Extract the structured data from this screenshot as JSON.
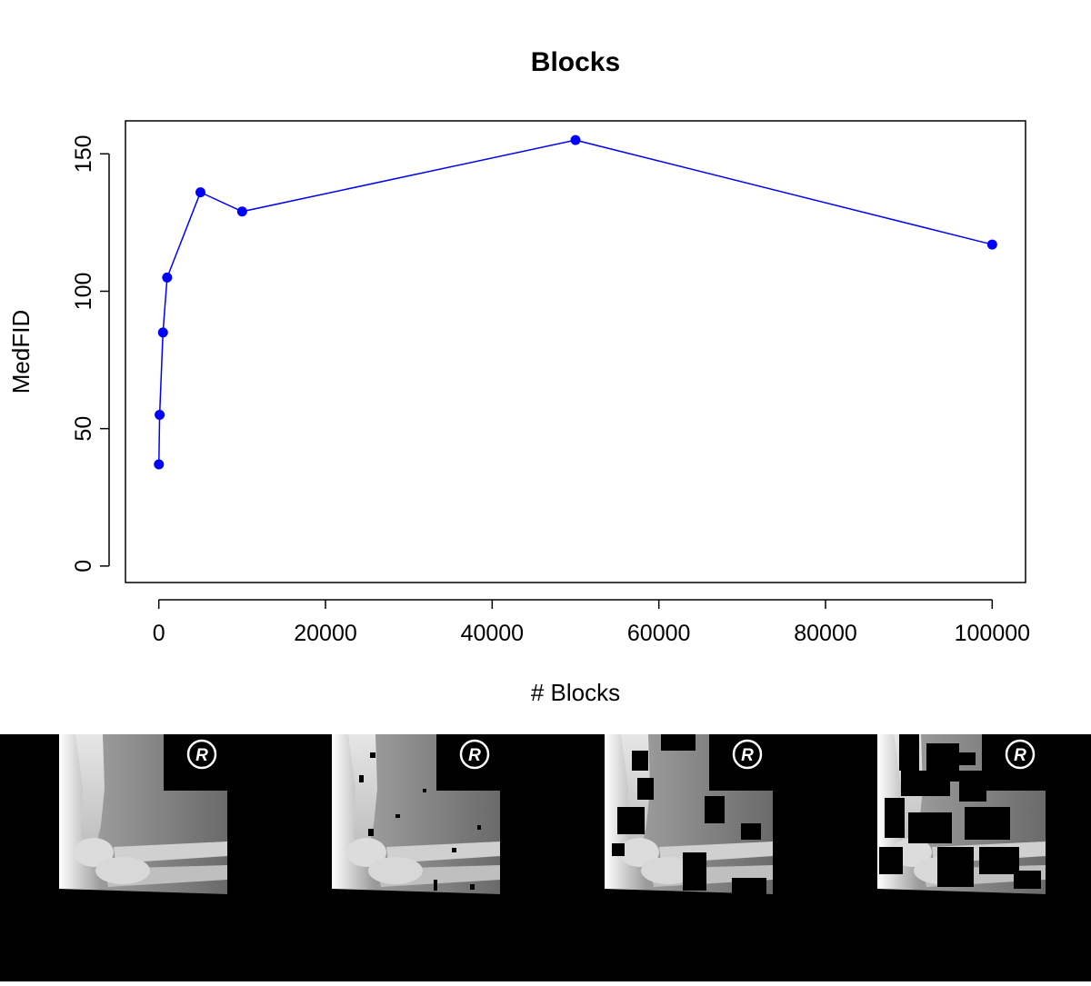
{
  "chart_data": {
    "type": "line",
    "title": "Blocks",
    "xlabel": "# Blocks",
    "ylabel": "MedFID",
    "xlim": [
      -4000,
      104000
    ],
    "ylim": [
      -6,
      162
    ],
    "xticks": [
      0,
      20000,
      40000,
      60000,
      80000,
      100000
    ],
    "xtick_labels": [
      "0",
      "20000",
      "40000",
      "60000",
      "80000",
      "100000"
    ],
    "yticks": [
      0,
      50,
      100,
      150
    ],
    "ytick_labels": [
      "0",
      "50",
      "100",
      "150"
    ],
    "grid": false,
    "legend": "none",
    "series": [
      {
        "color": "#0000ff",
        "marker": "filled-circle",
        "x": [
          10,
          100,
          500,
          1000,
          5000,
          10000,
          50000,
          100000
        ],
        "y": [
          37,
          55,
          85,
          105,
          136,
          129,
          155,
          117
        ]
      }
    ]
  },
  "images": {
    "count": 4,
    "marker_glyph": "R",
    "panels": [
      {
        "id": "xray-original"
      },
      {
        "id": "xray-few-blocks"
      },
      {
        "id": "xray-medium-blocks"
      },
      {
        "id": "xray-many-blocks"
      }
    ]
  }
}
